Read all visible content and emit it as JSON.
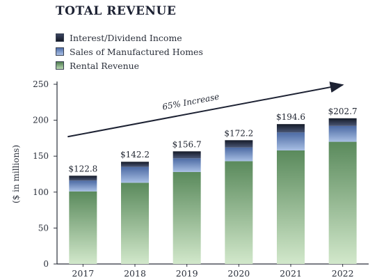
{
  "chart_data": {
    "type": "bar",
    "stacked": true,
    "title": "TOTAL REVENUE",
    "ylabel": "($ in millions)",
    "xlabel": "",
    "ylim": [
      0,
      250
    ],
    "yticks": [
      "0",
      "50",
      "100",
      "150",
      "200",
      "250"
    ],
    "categories": [
      "2017",
      "2018",
      "2019",
      "2020",
      "2021",
      "2022"
    ],
    "series": [
      {
        "name": "Rental Revenue",
        "values": [
          101,
          113,
          128,
          143,
          158,
          170
        ],
        "color": "#6e9a6e"
      },
      {
        "name": "Sales of Manufactured Homes",
        "values": [
          15,
          22,
          19,
          19,
          25,
          22
        ],
        "color": "#6f8fc2"
      },
      {
        "name": "Interest/Dividend Income",
        "values": [
          6.8,
          7.2,
          9.7,
          10.2,
          11.6,
          10.7
        ],
        "color": "#20263a"
      }
    ],
    "totals": [
      "$122.8",
      "$142.2",
      "$156.7",
      "$172.2",
      "$194.6",
      "$202.7"
    ],
    "annotation": "65% Increase",
    "legend_position": "top-left",
    "grid": false
  },
  "legend": [
    {
      "label": "Interest/Dividend Income",
      "color": "#20263a"
    },
    {
      "label": "Sales of Manufactured Homes",
      "color": "#6f8fc2"
    },
    {
      "label": "Rental Revenue",
      "color": "#6e9a6e"
    }
  ]
}
